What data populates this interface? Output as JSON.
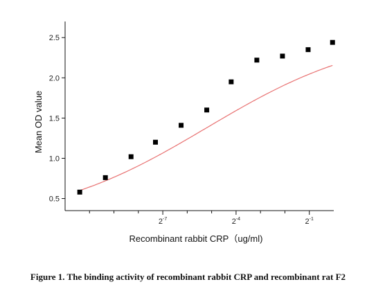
{
  "chart_data": {
    "type": "scatter",
    "xlabel": "Recombinant rabbit CRP（ug/ml)",
    "ylabel": "Mean OD value",
    "x_scale": "log2",
    "xlim": [
      -11,
      0
    ],
    "ylim": [
      0.35,
      2.7
    ],
    "y_ticks": [
      "0.5",
      "1.0",
      "1.5",
      "2.0",
      "2.5"
    ],
    "x_ticks": [
      {
        "base": "2",
        "exp": "-7",
        "value": -7
      },
      {
        "base": "2",
        "exp": "-4",
        "value": -4
      },
      {
        "base": "2",
        "exp": "-1",
        "value": -1
      }
    ],
    "points": [
      {
        "x": -10.4,
        "y": 0.58
      },
      {
        "x": -9.35,
        "y": 0.76
      },
      {
        "x": -8.3,
        "y": 1.02
      },
      {
        "x": -7.3,
        "y": 1.2
      },
      {
        "x": -6.25,
        "y": 1.41
      },
      {
        "x": -5.2,
        "y": 1.6
      },
      {
        "x": -4.2,
        "y": 1.95
      },
      {
        "x": -3.15,
        "y": 2.22
      },
      {
        "x": -2.1,
        "y": 2.27
      },
      {
        "x": -1.05,
        "y": 2.35
      },
      {
        "x": -0.05,
        "y": 2.44
      }
    ],
    "fit": {
      "bottom": 0.18,
      "top": 2.58,
      "log2_ec50": -5.2,
      "slope": 0.43
    },
    "marker_color": "#000000",
    "fit_color": "#e87070",
    "grid": false,
    "caption": "Figure 1. The binding activity of recombinant rabbit CRP and recombinant rat F2"
  }
}
